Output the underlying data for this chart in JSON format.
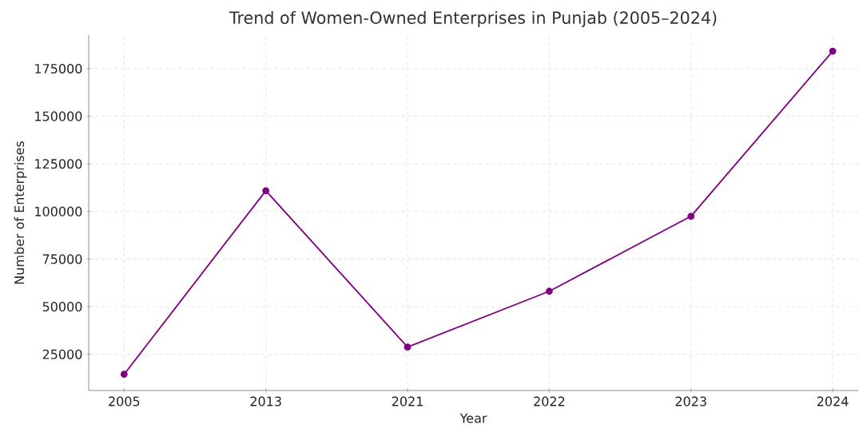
{
  "chart_data": {
    "type": "line",
    "title": "Trend of Women-Owned Enterprises in Punjab (2005–2024)",
    "xlabel": "Year",
    "ylabel": "Number of Enterprises",
    "categories": [
      "2005",
      "2013",
      "2021",
      "2022",
      "2023",
      "2024"
    ],
    "values": [
      14500,
      110900,
      28800,
      58100,
      97500,
      184200
    ],
    "color": "#800080",
    "marker": "circle",
    "line_style": "solid",
    "ylim": [
      6000,
      192600
    ],
    "yticks": [
      25000,
      50000,
      75000,
      100000,
      125000,
      150000,
      175000
    ],
    "grid": true
  }
}
